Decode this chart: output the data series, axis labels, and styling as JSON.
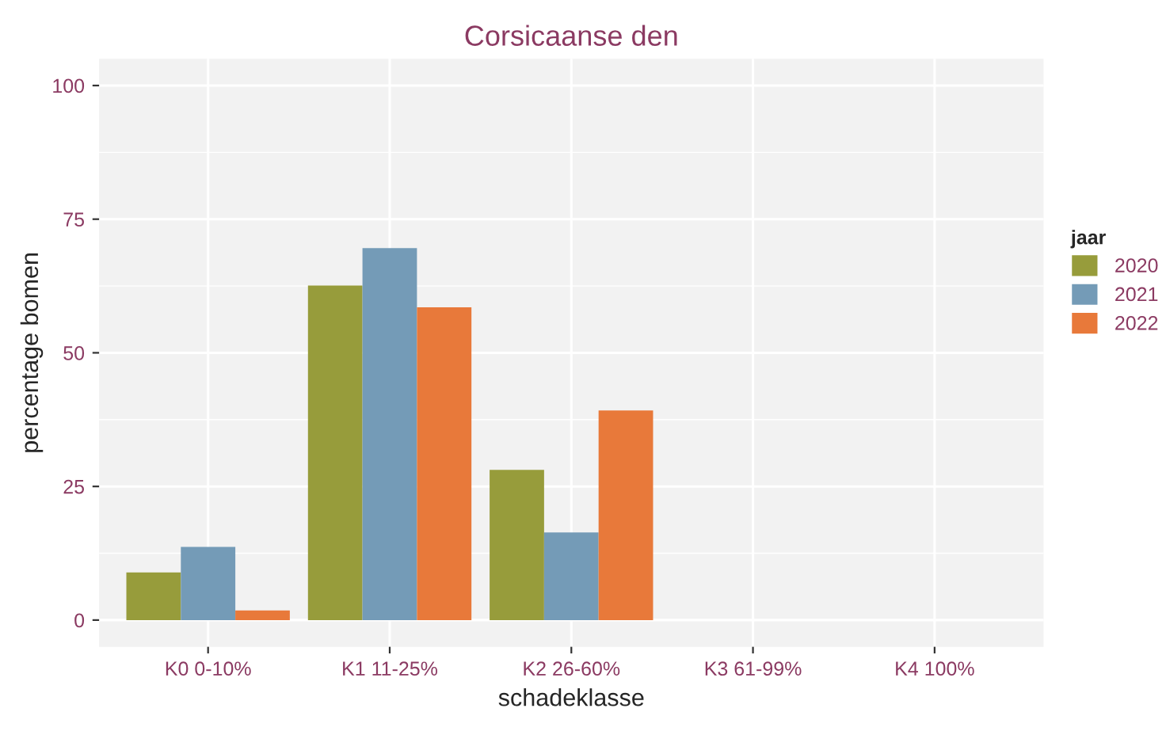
{
  "chart_data": {
    "type": "bar",
    "title": "Corsicaanse den",
    "xlabel": "schadeklasse",
    "ylabel": "percentage bomen",
    "legend_title": "jaar",
    "categories": [
      "K0 0-10%",
      "K1 11-25%",
      "K2 26-60%",
      "K3 61-99%",
      "K4 100%"
    ],
    "series": [
      {
        "name": "2020",
        "color": "#979c3b",
        "values": [
          8.9,
          62.6,
          28.1,
          0,
          0
        ]
      },
      {
        "name": "2021",
        "color": "#749bb7",
        "values": [
          13.7,
          69.6,
          16.4,
          0,
          0
        ]
      },
      {
        "name": "2022",
        "color": "#e8793a",
        "values": [
          1.8,
          58.5,
          39.2,
          0,
          0
        ]
      }
    ],
    "ylim": [
      -5,
      105
    ],
    "yticks": [
      0,
      25,
      50,
      75,
      100
    ],
    "grid": true,
    "legend": "right"
  }
}
